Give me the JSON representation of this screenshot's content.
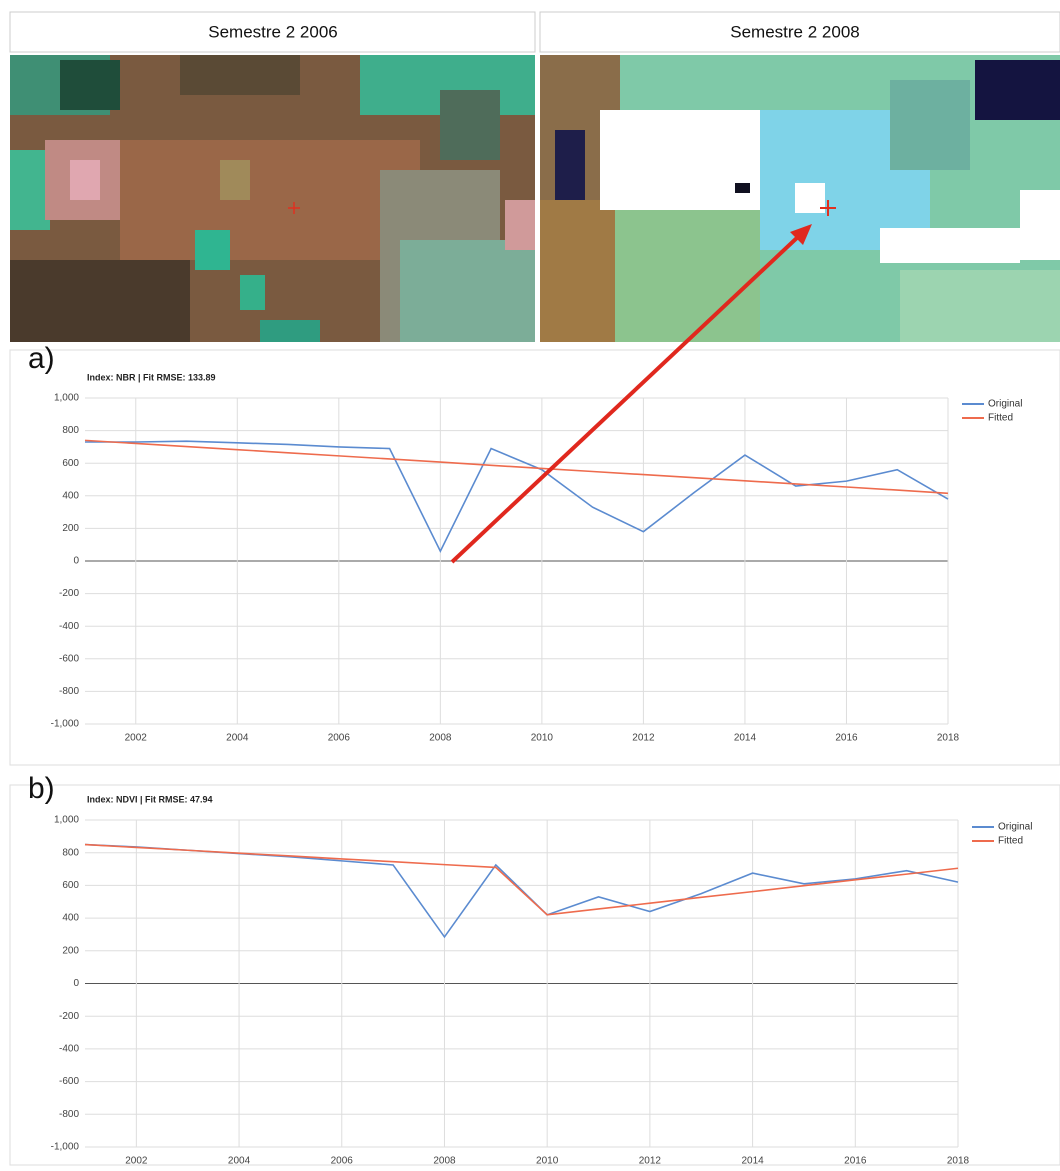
{
  "images": [
    {
      "title": "Semestre 2 2006"
    },
    {
      "title": "Semestre 2 2008"
    }
  ],
  "chart_data": [
    {
      "type": "line",
      "label": "a)",
      "title": "Index: NBR | Fit RMSE: 133.89",
      "x": [
        2001,
        2002,
        2003,
        2004,
        2005,
        2006,
        2007,
        2008,
        2009,
        2010,
        2011,
        2012,
        2013,
        2014,
        2015,
        2016,
        2017,
        2018
      ],
      "series": [
        {
          "name": "Original",
          "color": "#5b8bd0",
          "values": [
            730,
            730,
            735,
            725,
            715,
            700,
            690,
            60,
            690,
            560,
            330,
            180,
            420,
            650,
            460,
            490,
            560,
            380
          ]
        },
        {
          "name": "Fitted",
          "color": "#ee6b4d",
          "values": [
            740,
            721,
            702,
            683,
            664,
            645,
            626,
            607,
            587,
            568,
            549,
            530,
            511,
            492,
            473,
            454,
            435,
            415
          ]
        }
      ],
      "xlim": [
        2001,
        2018
      ],
      "xticks": [
        2002,
        2004,
        2006,
        2008,
        2010,
        2012,
        2014,
        2016,
        2018
      ],
      "ylim": [
        -1000,
        1000
      ],
      "yticks": [
        {
          "value": 1000,
          "label": "1,000"
        },
        800,
        600,
        400,
        200,
        0,
        -200,
        -400,
        -600,
        -800,
        {
          "value": -1000,
          "label": "-1,000"
        }
      ],
      "grid": true,
      "legend": "right"
    },
    {
      "type": "line",
      "label": "b)",
      "title": "Index: NDVI | Fit RMSE: 47.94",
      "x": [
        2001,
        2002,
        2003,
        2004,
        2005,
        2006,
        2007,
        2008,
        2009,
        2010,
        2011,
        2012,
        2013,
        2014,
        2015,
        2016,
        2017,
        2018
      ],
      "series": [
        {
          "name": "Original",
          "color": "#5b8bd0",
          "values": [
            850,
            835,
            815,
            795,
            775,
            750,
            725,
            285,
            725,
            420,
            530,
            440,
            550,
            675,
            610,
            640,
            690,
            620
          ]
        },
        {
          "name": "Fitted",
          "color": "#ee6b4d",
          "values": [
            850,
            832,
            815,
            797,
            780,
            762,
            745,
            727,
            710,
            420,
            456,
            491,
            527,
            562,
            598,
            634,
            669,
            705
          ]
        }
      ],
      "xlim": [
        2001,
        2018
      ],
      "xticks": [
        2002,
        2004,
        2006,
        2008,
        2010,
        2012,
        2014,
        2016,
        2018
      ],
      "ylim": [
        -1000,
        1000
      ],
      "yticks": [
        {
          "value": 1000,
          "label": "1,000"
        },
        800,
        600,
        400,
        200,
        0,
        -200,
        -400,
        -600,
        -800,
        {
          "value": -1000,
          "label": "-1,000"
        }
      ],
      "grid": true,
      "legend": "right"
    }
  ]
}
